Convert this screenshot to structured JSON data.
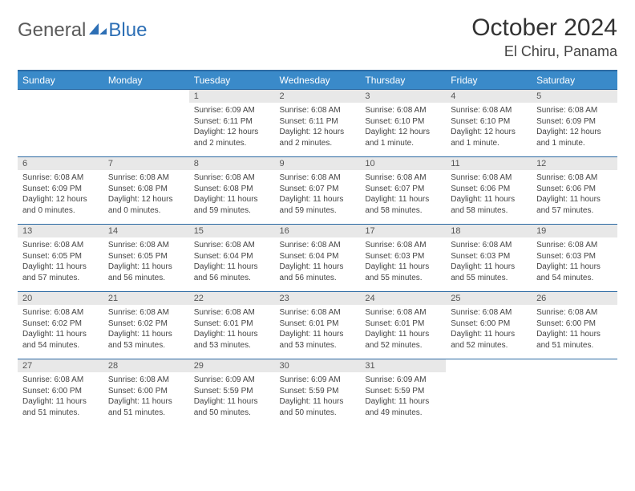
{
  "logo": {
    "general": "General",
    "blue": "Blue",
    "shape_color": "#2d6fb5"
  },
  "title": "October 2024",
  "location": "El Chiru, Panama",
  "colors": {
    "header_bg": "#3a8ac9",
    "header_border": "#2c6aa3",
    "daynum_bg": "#e8e8e8",
    "text": "#444444"
  },
  "weekdays": [
    "Sunday",
    "Monday",
    "Tuesday",
    "Wednesday",
    "Thursday",
    "Friday",
    "Saturday"
  ],
  "weeks": [
    [
      null,
      null,
      {
        "n": "1",
        "sr": "6:09 AM",
        "ss": "6:11 PM",
        "dl": "12 hours and 2 minutes."
      },
      {
        "n": "2",
        "sr": "6:08 AM",
        "ss": "6:11 PM",
        "dl": "12 hours and 2 minutes."
      },
      {
        "n": "3",
        "sr": "6:08 AM",
        "ss": "6:10 PM",
        "dl": "12 hours and 1 minute."
      },
      {
        "n": "4",
        "sr": "6:08 AM",
        "ss": "6:10 PM",
        "dl": "12 hours and 1 minute."
      },
      {
        "n": "5",
        "sr": "6:08 AM",
        "ss": "6:09 PM",
        "dl": "12 hours and 1 minute."
      }
    ],
    [
      {
        "n": "6",
        "sr": "6:08 AM",
        "ss": "6:09 PM",
        "dl": "12 hours and 0 minutes."
      },
      {
        "n": "7",
        "sr": "6:08 AM",
        "ss": "6:08 PM",
        "dl": "12 hours and 0 minutes."
      },
      {
        "n": "8",
        "sr": "6:08 AM",
        "ss": "6:08 PM",
        "dl": "11 hours and 59 minutes."
      },
      {
        "n": "9",
        "sr": "6:08 AM",
        "ss": "6:07 PM",
        "dl": "11 hours and 59 minutes."
      },
      {
        "n": "10",
        "sr": "6:08 AM",
        "ss": "6:07 PM",
        "dl": "11 hours and 58 minutes."
      },
      {
        "n": "11",
        "sr": "6:08 AM",
        "ss": "6:06 PM",
        "dl": "11 hours and 58 minutes."
      },
      {
        "n": "12",
        "sr": "6:08 AM",
        "ss": "6:06 PM",
        "dl": "11 hours and 57 minutes."
      }
    ],
    [
      {
        "n": "13",
        "sr": "6:08 AM",
        "ss": "6:05 PM",
        "dl": "11 hours and 57 minutes."
      },
      {
        "n": "14",
        "sr": "6:08 AM",
        "ss": "6:05 PM",
        "dl": "11 hours and 56 minutes."
      },
      {
        "n": "15",
        "sr": "6:08 AM",
        "ss": "6:04 PM",
        "dl": "11 hours and 56 minutes."
      },
      {
        "n": "16",
        "sr": "6:08 AM",
        "ss": "6:04 PM",
        "dl": "11 hours and 56 minutes."
      },
      {
        "n": "17",
        "sr": "6:08 AM",
        "ss": "6:03 PM",
        "dl": "11 hours and 55 minutes."
      },
      {
        "n": "18",
        "sr": "6:08 AM",
        "ss": "6:03 PM",
        "dl": "11 hours and 55 minutes."
      },
      {
        "n": "19",
        "sr": "6:08 AM",
        "ss": "6:03 PM",
        "dl": "11 hours and 54 minutes."
      }
    ],
    [
      {
        "n": "20",
        "sr": "6:08 AM",
        "ss": "6:02 PM",
        "dl": "11 hours and 54 minutes."
      },
      {
        "n": "21",
        "sr": "6:08 AM",
        "ss": "6:02 PM",
        "dl": "11 hours and 53 minutes."
      },
      {
        "n": "22",
        "sr": "6:08 AM",
        "ss": "6:01 PM",
        "dl": "11 hours and 53 minutes."
      },
      {
        "n": "23",
        "sr": "6:08 AM",
        "ss": "6:01 PM",
        "dl": "11 hours and 53 minutes."
      },
      {
        "n": "24",
        "sr": "6:08 AM",
        "ss": "6:01 PM",
        "dl": "11 hours and 52 minutes."
      },
      {
        "n": "25",
        "sr": "6:08 AM",
        "ss": "6:00 PM",
        "dl": "11 hours and 52 minutes."
      },
      {
        "n": "26",
        "sr": "6:08 AM",
        "ss": "6:00 PM",
        "dl": "11 hours and 51 minutes."
      }
    ],
    [
      {
        "n": "27",
        "sr": "6:08 AM",
        "ss": "6:00 PM",
        "dl": "11 hours and 51 minutes."
      },
      {
        "n": "28",
        "sr": "6:08 AM",
        "ss": "6:00 PM",
        "dl": "11 hours and 51 minutes."
      },
      {
        "n": "29",
        "sr": "6:09 AM",
        "ss": "5:59 PM",
        "dl": "11 hours and 50 minutes."
      },
      {
        "n": "30",
        "sr": "6:09 AM",
        "ss": "5:59 PM",
        "dl": "11 hours and 50 minutes."
      },
      {
        "n": "31",
        "sr": "6:09 AM",
        "ss": "5:59 PM",
        "dl": "11 hours and 49 minutes."
      },
      null,
      null
    ]
  ],
  "labels": {
    "sunrise": "Sunrise:",
    "sunset": "Sunset:",
    "daylight": "Daylight:"
  }
}
